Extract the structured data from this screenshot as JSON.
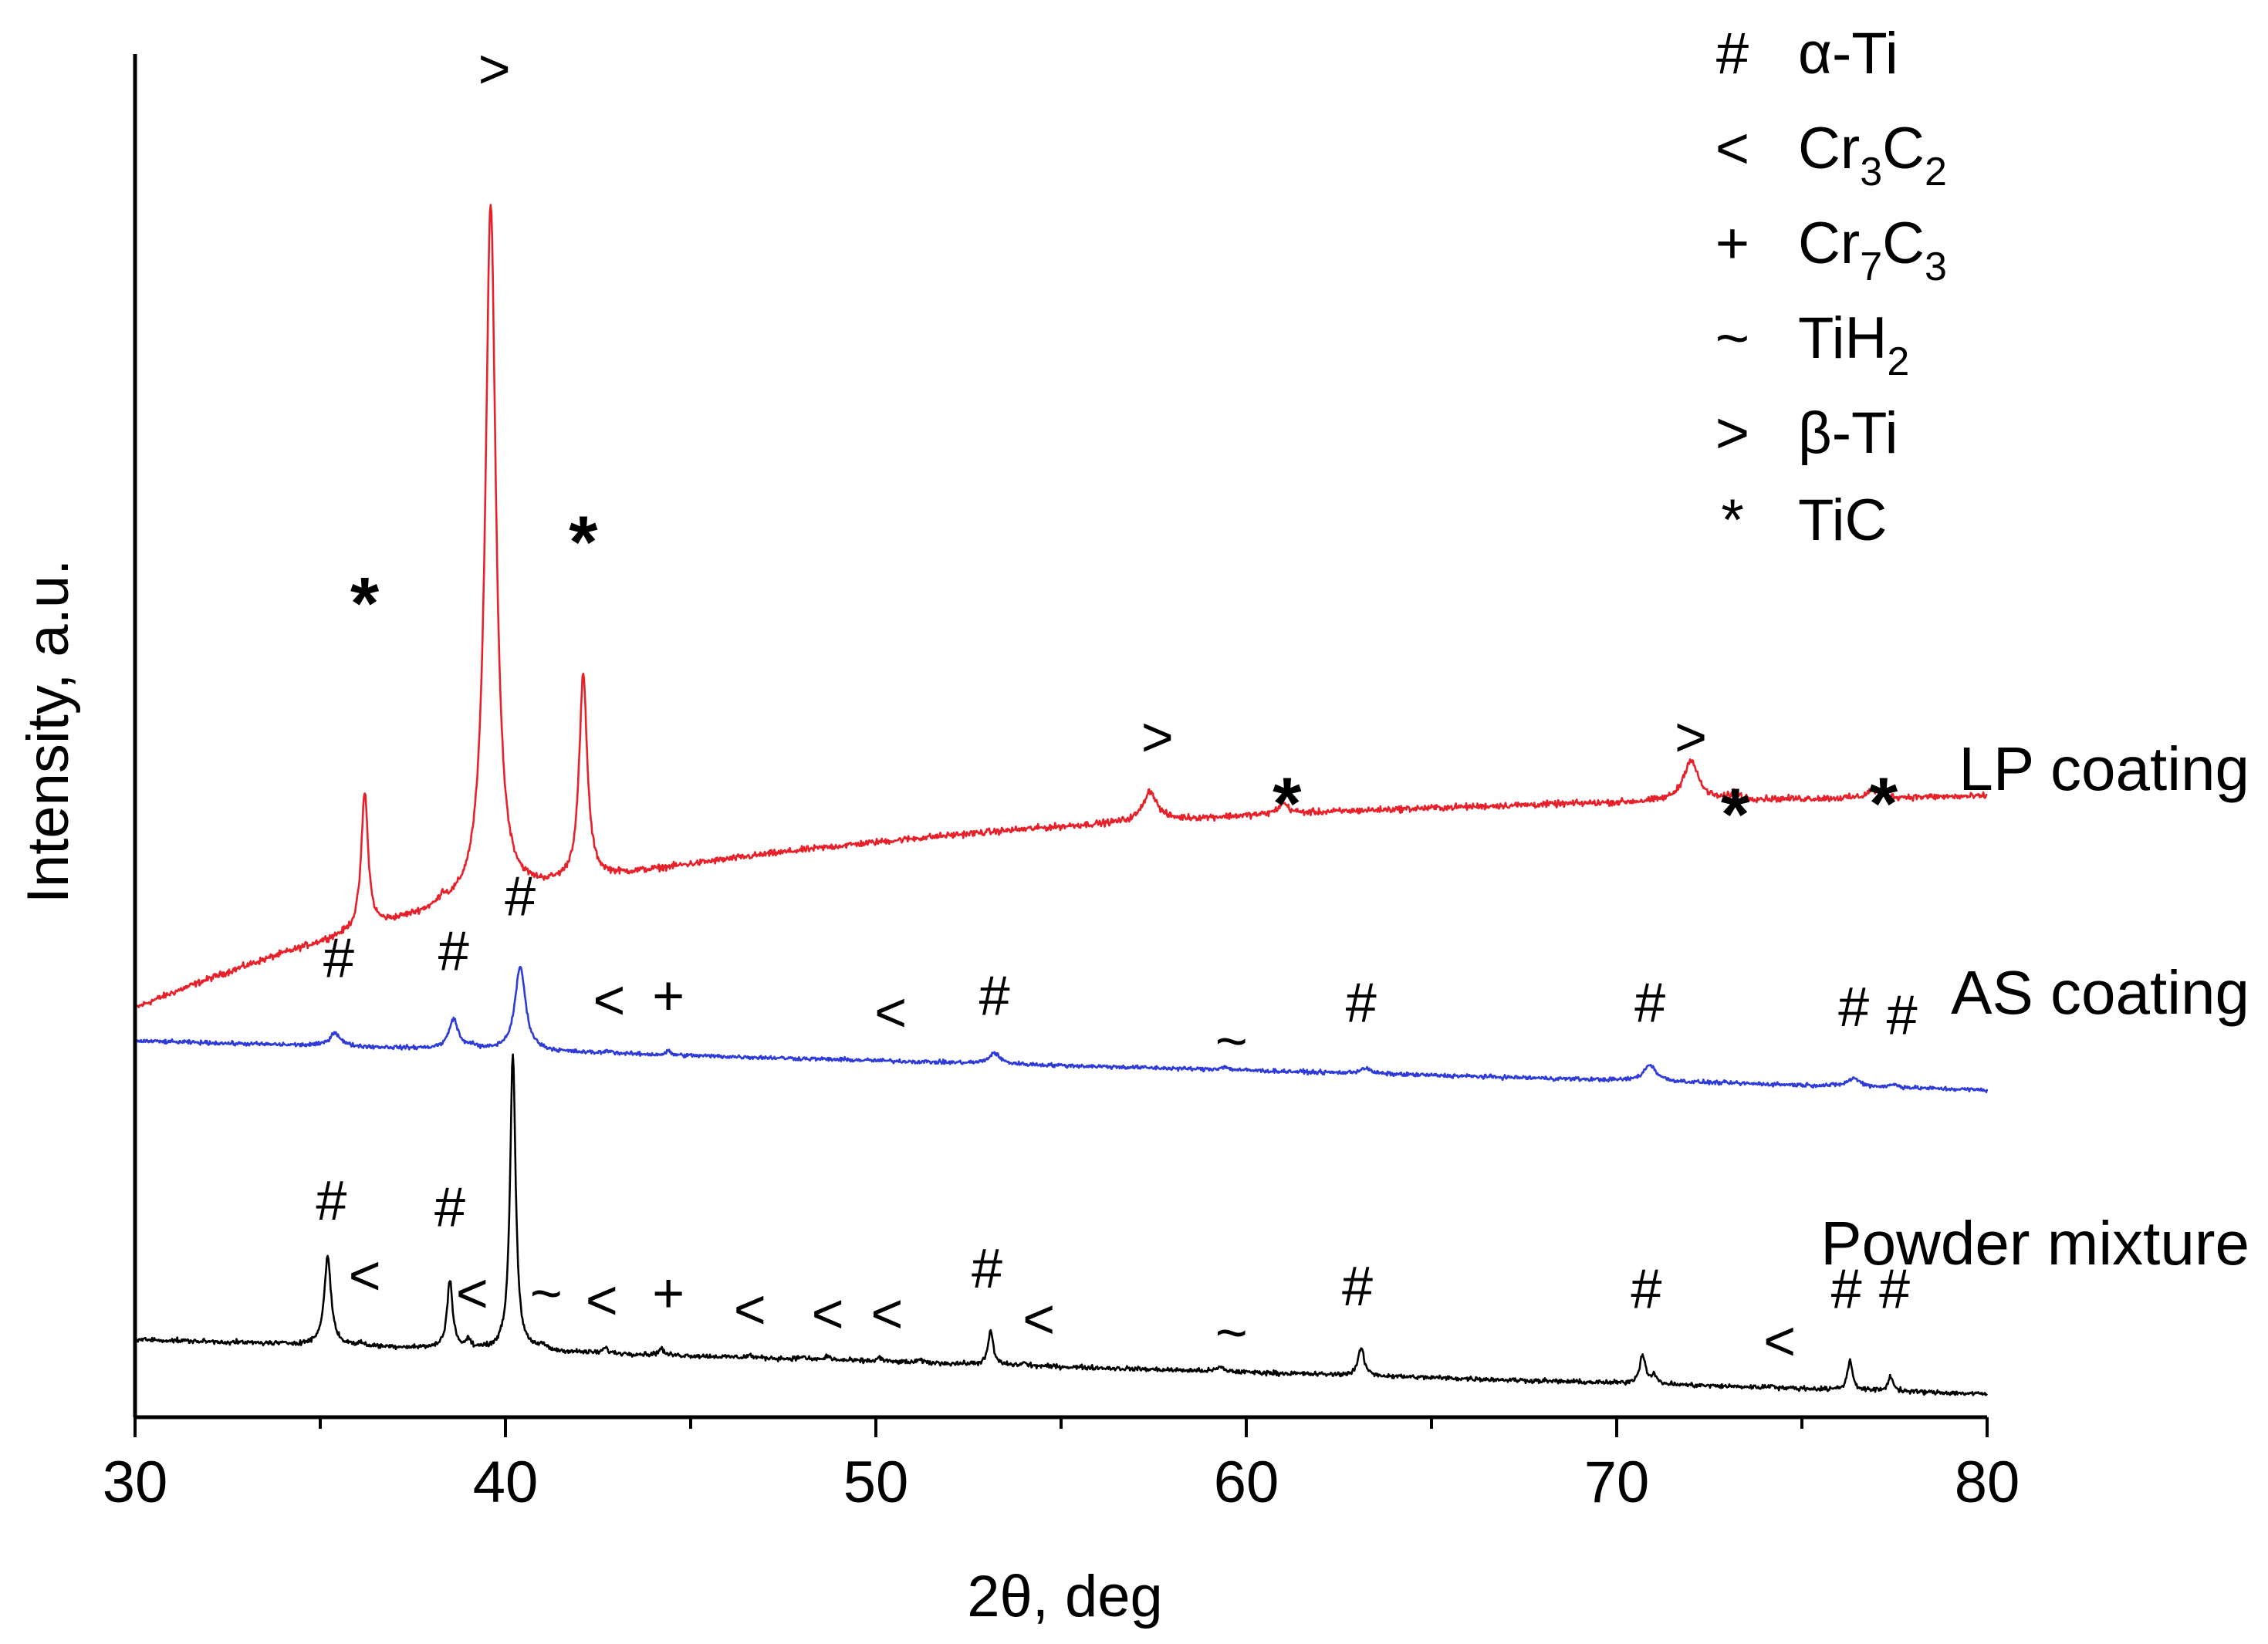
{
  "chart_data": {
    "type": "line",
    "xlabel": "2θ, deg",
    "ylabel": "Intensity, a.u.",
    "xlim": [
      30,
      80
    ],
    "xticks": [
      30,
      40,
      50,
      60,
      70,
      80
    ],
    "yticks_shown": false,
    "grid": false,
    "legend": {
      "placement": "top-right",
      "entries": [
        {
          "symbol": "#",
          "phase": "α-Ti",
          "parts": [
            {
              "t": "α-Ti"
            }
          ]
        },
        {
          "symbol": "<",
          "phase": "Cr3C2",
          "parts": [
            {
              "t": "Cr"
            },
            {
              "t": "3",
              "sub": true
            },
            {
              "t": "C"
            },
            {
              "t": "2",
              "sub": true
            }
          ]
        },
        {
          "symbol": "+",
          "phase": "Cr7C3",
          "parts": [
            {
              "t": "Cr"
            },
            {
              "t": "7",
              "sub": true
            },
            {
              "t": "C"
            },
            {
              "t": "3",
              "sub": true
            }
          ]
        },
        {
          "symbol": "~",
          "phase": "TiH2",
          "parts": [
            {
              "t": "TiH"
            },
            {
              "t": "2",
              "sub": true
            }
          ]
        },
        {
          "symbol": ">",
          "phase": "β-Ti",
          "parts": [
            {
              "t": "β-Ti"
            }
          ]
        },
        {
          "symbol": "*",
          "phase": "TiC",
          "parts": [
            {
              "t": "TiC"
            }
          ]
        }
      ]
    },
    "series": [
      {
        "name": "LP coating",
        "color": "#e8202a",
        "baseline": {
          "type": "rising",
          "start": 0.3,
          "end": 0.46,
          "k": 0.28
        },
        "noise": 0.0035,
        "peaks": [
          {
            "x": 36.2,
            "h": 0.1,
            "w": 0.11
          },
          {
            "x": 38.3,
            "h": 0.006,
            "w": 0.1
          },
          {
            "x": 39.6,
            "h": 0.51,
            "w": 0.17
          },
          {
            "x": 42.1,
            "h": 0.15,
            "w": 0.13
          },
          {
            "x": 57.4,
            "h": 0.022,
            "w": 0.22
          },
          {
            "x": 61.0,
            "h": 0.008,
            "w": 0.16
          },
          {
            "x": 72.0,
            "h": 0.03,
            "w": 0.24
          },
          {
            "x": 73.2,
            "h": 0.005,
            "w": 0.16
          },
          {
            "x": 76.9,
            "h": 0.006,
            "w": 0.16
          }
        ],
        "markers": [
          {
            "sym": "*",
            "x": 36.2,
            "y": 0.6
          },
          {
            "sym": ">",
            "x": 39.7,
            "y": 0.975
          },
          {
            "sym": "*",
            "x": 42.1,
            "y": 0.645
          },
          {
            "sym": ">",
            "x": 57.6,
            "y": 0.485
          },
          {
            "sym": "*",
            "x": 61.1,
            "y": 0.453
          },
          {
            "sym": ">",
            "x": 72.0,
            "y": 0.485
          },
          {
            "sym": "*",
            "x": 73.2,
            "y": 0.445
          },
          {
            "sym": "*",
            "x": 77.2,
            "y": 0.453
          }
        ]
      },
      {
        "name": "AS coating",
        "color": "#2f3bd9",
        "baseline": {
          "type": "linear",
          "start": 0.276,
          "end": 0.24
        },
        "noise": 0.0022,
        "peaks": [
          {
            "x": 35.4,
            "h": 0.01,
            "w": 0.17
          },
          {
            "x": 38.6,
            "h": 0.022,
            "w": 0.15
          },
          {
            "x": 39.1,
            "h": 0.003,
            "w": 0.1
          },
          {
            "x": 40.4,
            "h": 0.062,
            "w": 0.17
          },
          {
            "x": 42.8,
            "h": 0.002,
            "w": 0.1
          },
          {
            "x": 44.4,
            "h": 0.003,
            "w": 0.07
          },
          {
            "x": 53.2,
            "h": 0.008,
            "w": 0.17
          },
          {
            "x": 59.4,
            "h": 0.002,
            "w": 0.15
          },
          {
            "x": 63.2,
            "h": 0.004,
            "w": 0.17
          },
          {
            "x": 70.9,
            "h": 0.012,
            "w": 0.2
          },
          {
            "x": 76.4,
            "h": 0.006,
            "w": 0.2
          },
          {
            "x": 77.5,
            "h": 0.002,
            "w": 0.15
          }
        ],
        "markers": [
          {
            "sym": "#",
            "x": 35.5,
            "y": 0.323
          },
          {
            "sym": "#",
            "x": 38.6,
            "y": 0.328
          },
          {
            "sym": "#",
            "x": 40.4,
            "y": 0.368
          },
          {
            "sym": "<",
            "x": 42.8,
            "y": 0.292
          },
          {
            "sym": "+",
            "x": 44.4,
            "y": 0.295
          },
          {
            "sym": "<",
            "x": 50.4,
            "y": 0.283
          },
          {
            "sym": "#",
            "x": 53.2,
            "y": 0.295
          },
          {
            "sym": "~",
            "x": 59.6,
            "y": 0.262
          },
          {
            "sym": "#",
            "x": 63.1,
            "y": 0.29
          },
          {
            "sym": "#",
            "x": 70.9,
            "y": 0.29
          },
          {
            "sym": "#",
            "x": 76.4,
            "y": 0.287
          },
          {
            "sym": "#",
            "x": 77.7,
            "y": 0.281
          }
        ]
      },
      {
        "name": "Powder mixture",
        "color": "#000000",
        "baseline": {
          "type": "linear",
          "start": 0.057,
          "end": 0.017
        },
        "noise": 0.0025,
        "peaks": [
          {
            "x": 35.2,
            "h": 0.065,
            "w": 0.11
          },
          {
            "x": 36.1,
            "h": 0.002,
            "w": 0.08
          },
          {
            "x": 38.5,
            "h": 0.05,
            "w": 0.09
          },
          {
            "x": 39.0,
            "h": 0.006,
            "w": 0.07
          },
          {
            "x": 40.2,
            "h": 0.218,
            "w": 0.09
          },
          {
            "x": 41.0,
            "h": 0.004,
            "w": 0.1
          },
          {
            "x": 42.7,
            "h": 0.004,
            "w": 0.07
          },
          {
            "x": 44.2,
            "h": 0.005,
            "w": 0.07
          },
          {
            "x": 46.6,
            "h": 0.002,
            "w": 0.07
          },
          {
            "x": 48.0,
            "h": 0.002,
            "w": 0.07
          },
          {
            "x": 48.7,
            "h": 0.003,
            "w": 0.07
          },
          {
            "x": 50.1,
            "h": 0.003,
            "w": 0.07
          },
          {
            "x": 51.2,
            "h": 0.002,
            "w": 0.07
          },
          {
            "x": 53.1,
            "h": 0.025,
            "w": 0.08
          },
          {
            "x": 54.0,
            "h": 0.002,
            "w": 0.07
          },
          {
            "x": 59.3,
            "h": 0.003,
            "w": 0.12
          },
          {
            "x": 63.1,
            "h": 0.02,
            "w": 0.1
          },
          {
            "x": 70.7,
            "h": 0.021,
            "w": 0.1
          },
          {
            "x": 71.0,
            "h": 0.006,
            "w": 0.08
          },
          {
            "x": 74.2,
            "h": 0.002,
            "w": 0.07
          },
          {
            "x": 76.3,
            "h": 0.022,
            "w": 0.08
          },
          {
            "x": 77.4,
            "h": 0.011,
            "w": 0.08
          }
        ],
        "markers": [
          {
            "sym": "#",
            "x": 35.3,
            "y": 0.145
          },
          {
            "sym": "<",
            "x": 36.2,
            "y": 0.09
          },
          {
            "sym": "#",
            "x": 38.5,
            "y": 0.14
          },
          {
            "sym": "<",
            "x": 39.1,
            "y": 0.077
          },
          {
            "sym": "~",
            "x": 41.1,
            "y": 0.077
          },
          {
            "sym": "<",
            "x": 42.6,
            "y": 0.072
          },
          {
            "sym": "+",
            "x": 44.4,
            "y": 0.077
          },
          {
            "sym": "<",
            "x": 46.6,
            "y": 0.065
          },
          {
            "sym": "<",
            "x": 48.7,
            "y": 0.062
          },
          {
            "sym": "<",
            "x": 50.3,
            "y": 0.062
          },
          {
            "sym": "#",
            "x": 53.0,
            "y": 0.095
          },
          {
            "sym": "<",
            "x": 54.4,
            "y": 0.058
          },
          {
            "sym": "~",
            "x": 59.6,
            "y": 0.048
          },
          {
            "sym": "#",
            "x": 63.0,
            "y": 0.082
          },
          {
            "sym": "#",
            "x": 70.8,
            "y": 0.08
          },
          {
            "sym": "<",
            "x": 74.4,
            "y": 0.042
          },
          {
            "sym": "#",
            "x": 76.2,
            "y": 0.08
          },
          {
            "sym": "#",
            "x": 77.5,
            "y": 0.08
          }
        ]
      }
    ]
  }
}
